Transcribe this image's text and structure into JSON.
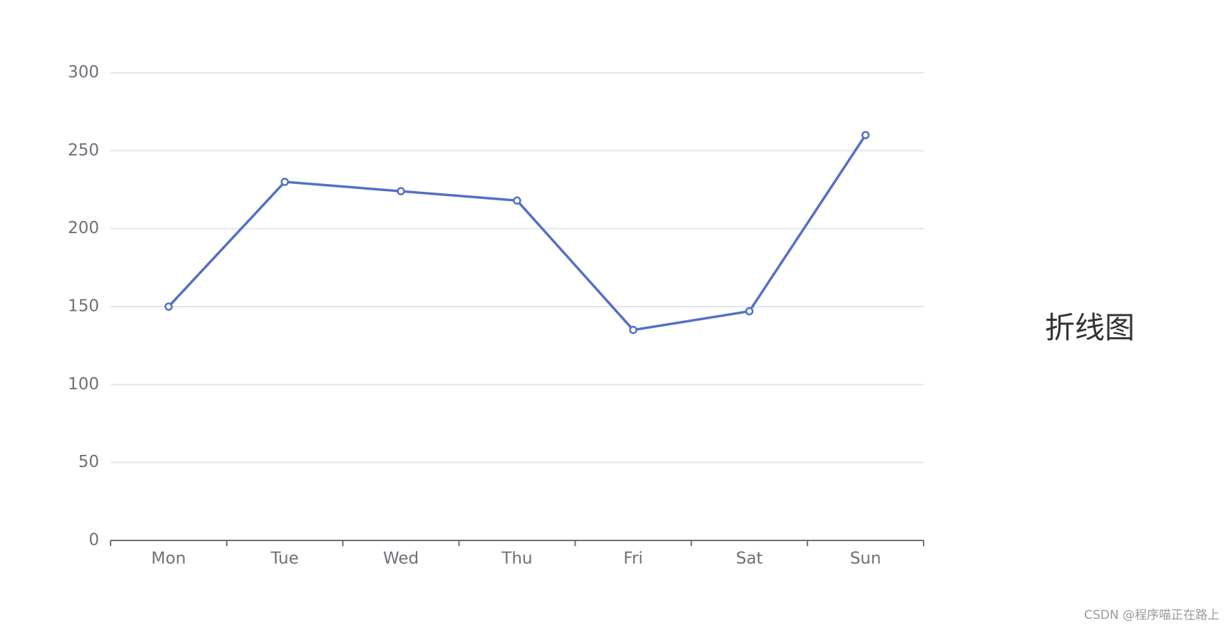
{
  "chart_data": {
    "type": "line",
    "title": "折线图",
    "categories": [
      "Mon",
      "Tue",
      "Wed",
      "Thu",
      "Fri",
      "Sat",
      "Sun"
    ],
    "values": [
      150,
      230,
      224,
      218,
      135,
      147,
      260
    ],
    "color": "#5470c6",
    "ylim": [
      0,
      300
    ],
    "yticks": [
      0,
      50,
      100,
      150,
      200,
      250,
      300
    ],
    "grid": true
  },
  "watermark": "CSDN @程序喵正在路上"
}
